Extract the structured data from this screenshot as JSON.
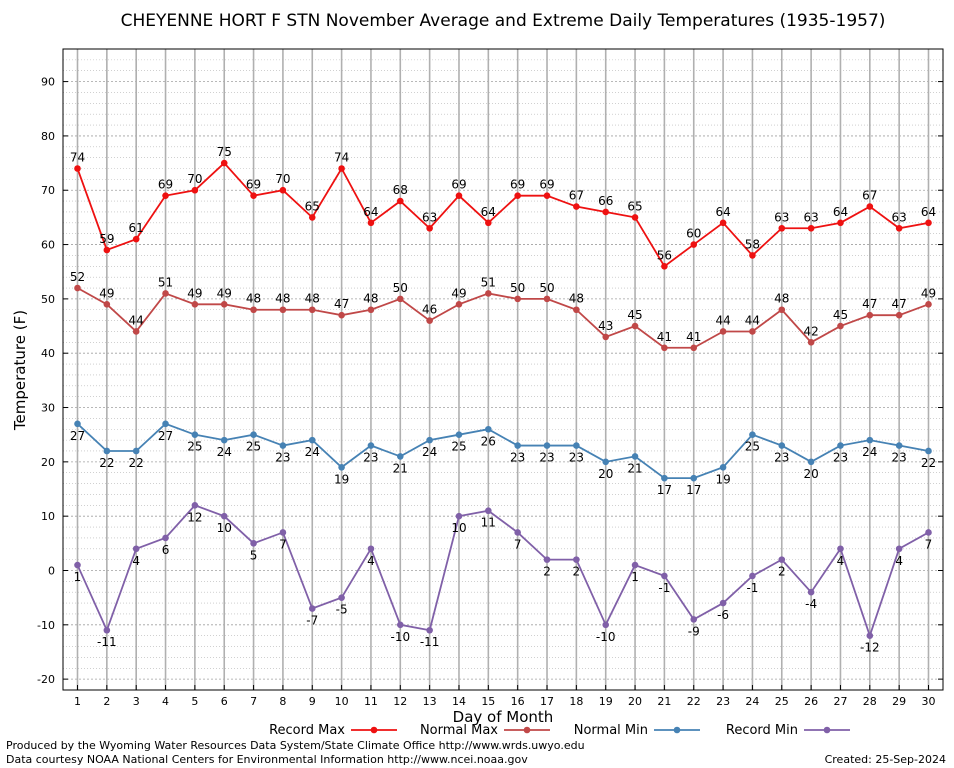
{
  "chart_data": {
    "type": "line",
    "title": "CHEYENNE HORT F STN November Average and Extreme Daily Temperatures (1935-1957)",
    "xlabel": "Day of Month",
    "ylabel": "Temperature (F)",
    "ylim": [
      -22,
      96
    ],
    "yticks": [
      -20,
      -10,
      0,
      10,
      20,
      30,
      40,
      50,
      60,
      70,
      80,
      90
    ],
    "grid": true,
    "legend_position": "bottom",
    "x": [
      1,
      2,
      3,
      4,
      5,
      6,
      7,
      8,
      9,
      10,
      11,
      12,
      13,
      14,
      15,
      16,
      17,
      18,
      19,
      20,
      21,
      22,
      23,
      24,
      25,
      26,
      27,
      28,
      29,
      30
    ],
    "series": [
      {
        "name": "Record Max",
        "color": "#ee1111",
        "values": [
          74,
          59,
          61,
          69,
          70,
          75,
          69,
          70,
          65,
          74,
          64,
          68,
          63,
          69,
          64,
          69,
          69,
          67,
          66,
          65,
          56,
          60,
          64,
          58,
          63,
          63,
          64,
          67,
          63,
          64
        ]
      },
      {
        "name": "Normal Max",
        "color": "#c04848",
        "values": [
          52,
          49,
          44,
          51,
          49,
          49,
          48,
          48,
          48,
          47,
          48,
          50,
          46,
          49,
          51,
          50,
          50,
          48,
          43,
          45,
          41,
          41,
          44,
          44,
          48,
          42,
          45,
          47,
          47,
          49
        ]
      },
      {
        "name": "Normal Min",
        "color": "#4682b4",
        "values": [
          27,
          22,
          22,
          27,
          25,
          24,
          25,
          23,
          24,
          19,
          23,
          21,
          24,
          25,
          26,
          23,
          23,
          23,
          20,
          21,
          17,
          17,
          19,
          25,
          23,
          20,
          23,
          24,
          23,
          22
        ]
      },
      {
        "name": "Record Min",
        "color": "#8060a8",
        "values": [
          1,
          -11,
          4,
          6,
          12,
          10,
          5,
          7,
          -7,
          -5,
          4,
          -10,
          -11,
          10,
          11,
          7,
          2,
          2,
          -10,
          1,
          -1,
          -9,
          -6,
          -1,
          2,
          -4,
          4,
          -12,
          4,
          7
        ]
      }
    ]
  },
  "footer": {
    "produced_by": "Produced by the Wyoming Water Resources Data System/State Climate Office http://www.wrds.uwyo.edu",
    "courtesy": "Data courtesy NOAA National Centers for Environmental Information http://www.ncei.noaa.gov",
    "created": "Created:  25-Sep-2024"
  }
}
